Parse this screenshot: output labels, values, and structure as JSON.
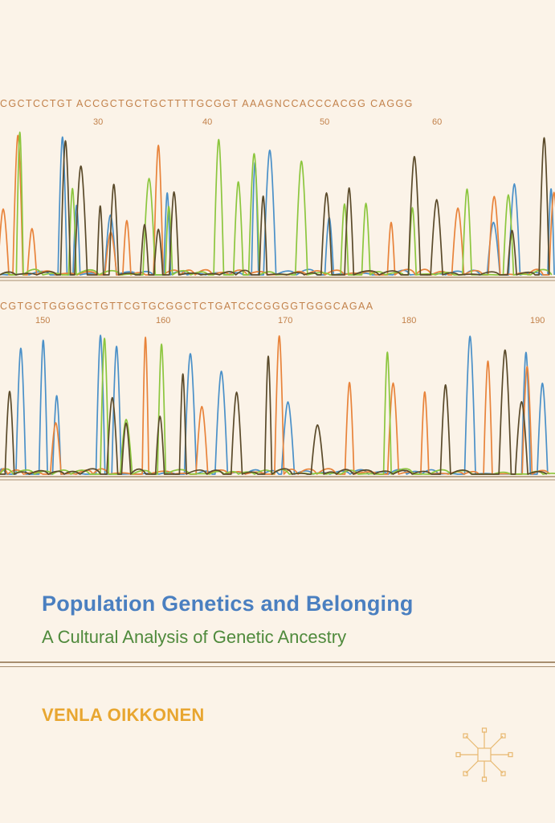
{
  "cover": {
    "title": "Population Genetics and Belonging",
    "subtitle": "A Cultural Analysis of Genetic Ancestry",
    "author": "VENLA OIKKONEN"
  },
  "sequence_top": {
    "bases": "CGCTCCTGT ACCGCTGCTGCTTTTGCGGT AAAGNCCACCCACGG CAGGG",
    "ticks": [
      "30",
      "40",
      "50",
      "60"
    ]
  },
  "sequence_bottom": {
    "bases": "CGTGCTGGGGCTGTTCGTGCGGCTCTGATCCCGGGGTGGGCAGAA",
    "ticks": [
      "150",
      "160",
      "170",
      "180",
      "190"
    ]
  },
  "colors": {
    "background": "#fbf3e8",
    "trace_blue": "#4a90c8",
    "trace_orange": "#e8833a",
    "trace_green": "#8cc63e",
    "trace_black": "#5a4a2a",
    "title_blue": "#4a7fc0",
    "subtitle_green": "#4f8a3c",
    "author_orange": "#e8a630"
  },
  "icons": {
    "publisher_logo": "palgrave-logo-icon"
  }
}
